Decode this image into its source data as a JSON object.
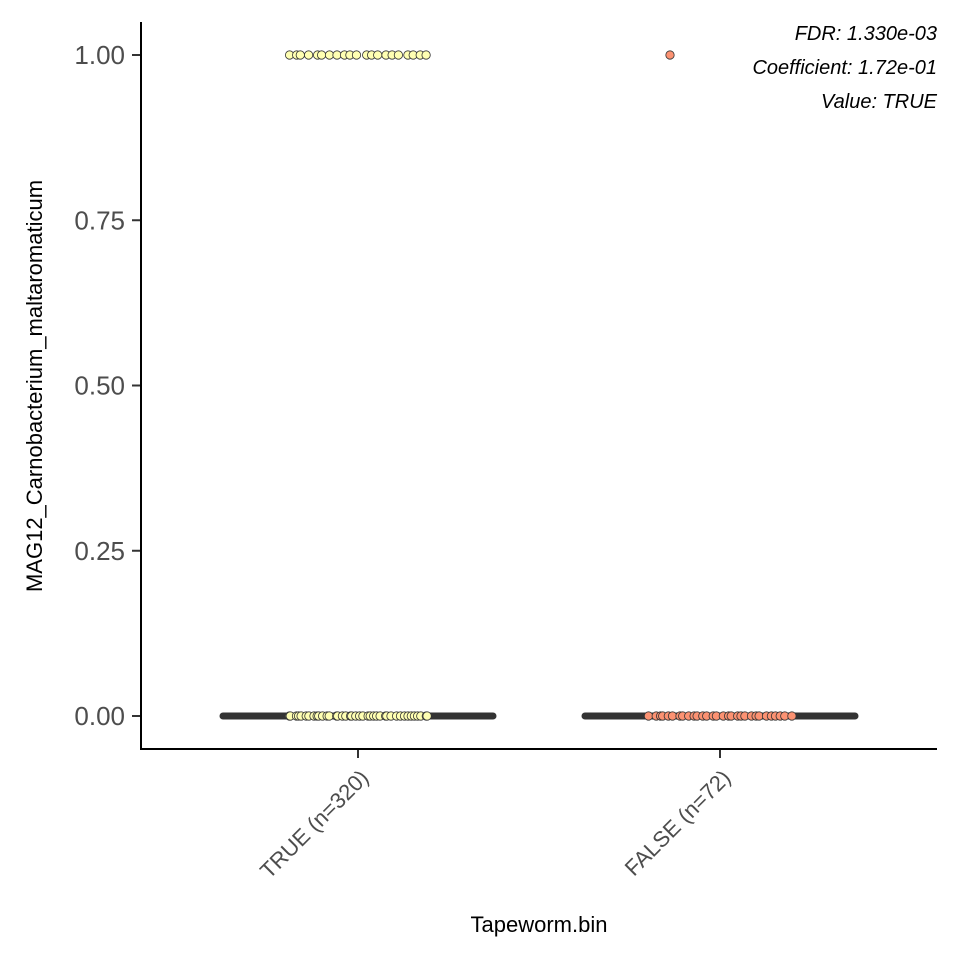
{
  "chart_data": {
    "type": "scatter",
    "subtype": "boxplot-with-jitter",
    "xlabel": "Tapeworm.bin",
    "ylabel": "MAG12_Carnobacterium_maltaromaticum",
    "ylim": [
      -0.05,
      1.05
    ],
    "yticks": [
      0,
      0.25,
      0.5,
      0.75,
      1
    ],
    "ytick_labels": [
      "0.00",
      "0.25",
      "0.50",
      "0.75",
      "1.00"
    ],
    "categories": [
      "TRUE (n=320)",
      "FALSE (n=72)"
    ],
    "grid": false,
    "legend": "none",
    "series": [
      {
        "category": "TRUE (n=320)",
        "fill": "#ffffb2",
        "box": {
          "min": 0,
          "q1": 0,
          "median": 0,
          "q3": 0,
          "max": 0
        },
        "points_at_1": 21,
        "points_at_0": 40,
        "y_values_shown": [
          0,
          1
        ]
      },
      {
        "category": "FALSE (n=72)",
        "fill": "#fc9272",
        "box": {
          "min": 0,
          "q1": 0,
          "median": 0,
          "q3": 0,
          "max": 0
        },
        "points_at_1": 1,
        "points_at_0": 30,
        "y_values_shown": [
          0,
          1
        ]
      }
    ],
    "annotations": [
      "FDR: 1.330e-03",
      "Coefficient: 1.72e-01",
      "Value: TRUE"
    ],
    "annotation_placement": "top-right"
  }
}
